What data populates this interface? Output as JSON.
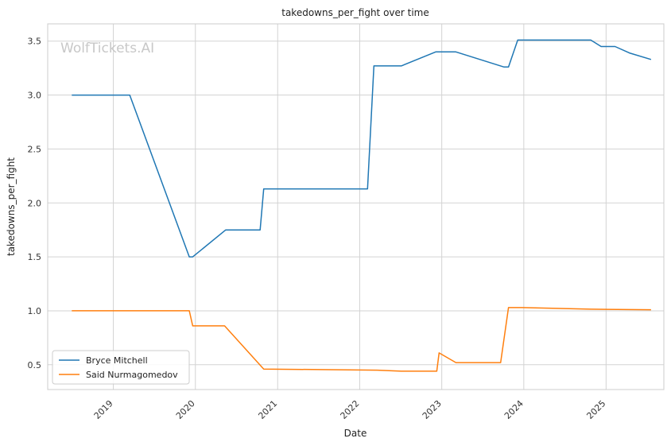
{
  "chart_data": {
    "type": "line",
    "title": "takedowns_per_fight over time",
    "xlabel": "Date",
    "ylabel": "takedowns_per_fight",
    "watermark": "WolfTickets.AI",
    "xlim": [
      "2018-03-15",
      "2025-09-15"
    ],
    "ylim": [
      0.27,
      3.66
    ],
    "x_ticks": [
      "2019",
      "2020",
      "2021",
      "2022",
      "2023",
      "2024",
      "2025"
    ],
    "y_ticks": [
      "0.5",
      "1.0",
      "1.5",
      "2.0",
      "2.5",
      "3.0",
      "3.5"
    ],
    "grid": true,
    "legend_position": "lower-left",
    "series": [
      {
        "name": "Bryce Mitchell",
        "color": "#1f77b4",
        "points": [
          [
            "2018-06-30",
            3.0
          ],
          [
            "2019-03-15",
            3.0
          ],
          [
            "2019-12-05",
            1.5
          ],
          [
            "2019-12-20",
            1.5
          ],
          [
            "2020-05-15",
            1.75
          ],
          [
            "2020-10-15",
            1.75
          ],
          [
            "2020-10-31",
            2.13
          ],
          [
            "2022-02-05",
            2.13
          ],
          [
            "2022-03-05",
            3.27
          ],
          [
            "2022-07-05",
            3.27
          ],
          [
            "2022-12-05",
            3.4
          ],
          [
            "2023-03-05",
            3.4
          ],
          [
            "2023-10-05",
            3.26
          ],
          [
            "2023-10-25",
            3.26
          ],
          [
            "2023-12-05",
            3.51
          ],
          [
            "2024-10-25",
            3.51
          ],
          [
            "2024-12-10",
            3.45
          ],
          [
            "2025-02-10",
            3.45
          ],
          [
            "2025-04-15",
            3.39
          ],
          [
            "2025-07-20",
            3.33
          ]
        ]
      },
      {
        "name": "Said Nurmagomedov",
        "color": "#ff7f0e",
        "points": [
          [
            "2018-06-30",
            1.0
          ],
          [
            "2019-12-05",
            1.0
          ],
          [
            "2019-12-20",
            0.86
          ],
          [
            "2020-05-10",
            0.86
          ],
          [
            "2020-10-31",
            0.46
          ],
          [
            "2022-03-20",
            0.45
          ],
          [
            "2022-07-05",
            0.44
          ],
          [
            "2022-12-10",
            0.44
          ],
          [
            "2022-12-20",
            0.61
          ],
          [
            "2023-03-05",
            0.52
          ],
          [
            "2023-09-20",
            0.52
          ],
          [
            "2023-10-25",
            1.03
          ],
          [
            "2023-12-25",
            1.03
          ],
          [
            "2024-10-25",
            1.015
          ],
          [
            "2025-07-20",
            1.01
          ]
        ]
      }
    ]
  }
}
